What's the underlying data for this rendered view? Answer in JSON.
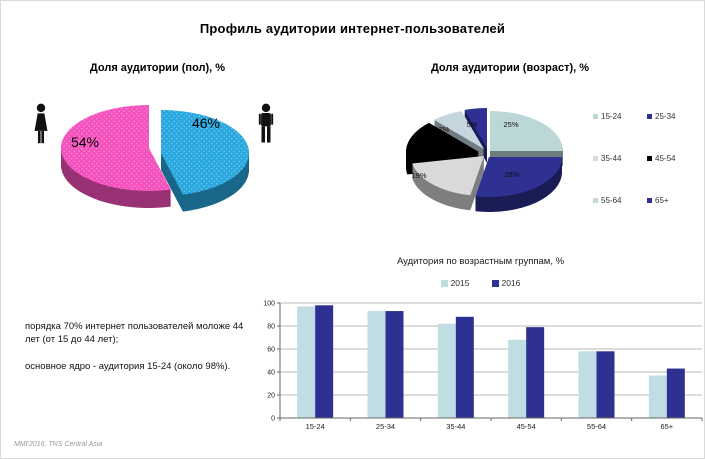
{
  "page": {
    "title": "Профиль аудитории интернет-пользователей",
    "footer": "MMI'2016, TNS Central Asia"
  },
  "notes": {
    "p1": "порядка 70% интернет пользователей моложе 44 лет (от 15 до 44 лет);",
    "p2": "основное ядро - аудитория 15-24 (около 98%)."
  },
  "chart_data": [
    {
      "id": "gender_pie",
      "type": "pie",
      "title": "Доля аудитории (пол), %",
      "categories": [
        "man",
        "woman"
      ],
      "values": [
        46,
        54
      ],
      "data_labels": [
        "46%",
        "54%"
      ],
      "colors": [
        "#29A7DF",
        "#F551BD"
      ],
      "icons": {
        "left": "woman-icon",
        "right": "man-icon"
      },
      "style": "3d-exploded-dotted"
    },
    {
      "id": "age_pie",
      "type": "pie",
      "title": "Доля аудитории (возраст), %",
      "categories": [
        "15-24",
        "25-34",
        "35-44",
        "45-54",
        "55-64",
        "65+"
      ],
      "values": [
        25,
        28,
        19,
        16,
        7,
        5
      ],
      "data_labels": [
        "25%",
        "28%",
        "19%",
        "",
        "7%",
        "5%"
      ],
      "colors": [
        "#BCD7D8",
        "#2E3192",
        "#D9D9D9",
        "#000000",
        "#C6D6DE",
        "#2E3192"
      ],
      "legend_position": "right",
      "style": "3d-exploded"
    },
    {
      "id": "age_bars",
      "type": "bar",
      "title": "Аудитория по возрастным группам, %",
      "categories": [
        "15-24",
        "25-34",
        "35-44",
        "45-54",
        "55-64",
        "65+"
      ],
      "series": [
        {
          "name": "2015",
          "values": [
            97,
            93,
            82,
            68,
            58,
            37
          ],
          "color": "#BFDDE2"
        },
        {
          "name": "2016",
          "values": [
            98,
            93,
            88,
            79,
            58,
            43
          ],
          "color": "#2E3192"
        }
      ],
      "ylim": [
        0,
        100
      ],
      "yticks": [
        0,
        20,
        40,
        60,
        80,
        100
      ],
      "grid": true,
      "legend_position": "top"
    }
  ]
}
